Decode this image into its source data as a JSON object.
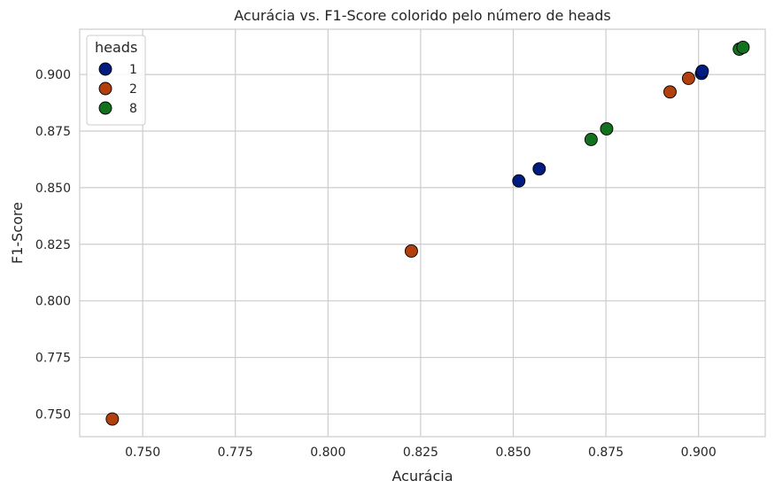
{
  "chart_data": {
    "type": "scatter",
    "title": "Acurácia vs. F1-Score colorido pelo número de heads",
    "xlabel": "Acurácia",
    "ylabel": "F1-Score",
    "xlim": [
      0.733,
      0.918
    ],
    "ylim": [
      0.74,
      0.92
    ],
    "xticks": [
      0.75,
      0.775,
      0.8,
      0.825,
      0.85,
      0.875,
      0.9
    ],
    "xtick_labels": [
      "0.750",
      "0.775",
      "0.800",
      "0.825",
      "0.850",
      "0.875",
      "0.900"
    ],
    "yticks": [
      0.75,
      0.775,
      0.8,
      0.825,
      0.85,
      0.875,
      0.9
    ],
    "ytick_labels": [
      "0.750",
      "0.775",
      "0.800",
      "0.825",
      "0.850",
      "0.875",
      "0.900"
    ],
    "grid": true,
    "legend": {
      "title": "heads",
      "placement": "top-left"
    },
    "series": [
      {
        "name": "1",
        "color": "#001c7f",
        "points": [
          {
            "x": 0.8515,
            "y": 0.853
          },
          {
            "x": 0.857,
            "y": 0.8583
          },
          {
            "x": 0.9008,
            "y": 0.9005
          },
          {
            "x": 0.901,
            "y": 0.9015
          }
        ]
      },
      {
        "name": "2",
        "color": "#b1400d",
        "points": [
          {
            "x": 0.7418,
            "y": 0.7478
          },
          {
            "x": 0.8225,
            "y": 0.822
          },
          {
            "x": 0.8923,
            "y": 0.8923
          },
          {
            "x": 0.8973,
            "y": 0.8983
          }
        ]
      },
      {
        "name": "8",
        "color": "#12711c",
        "points": [
          {
            "x": 0.871,
            "y": 0.8713
          },
          {
            "x": 0.8752,
            "y": 0.876
          },
          {
            "x": 0.911,
            "y": 0.9112
          },
          {
            "x": 0.912,
            "y": 0.912
          }
        ]
      }
    ]
  }
}
